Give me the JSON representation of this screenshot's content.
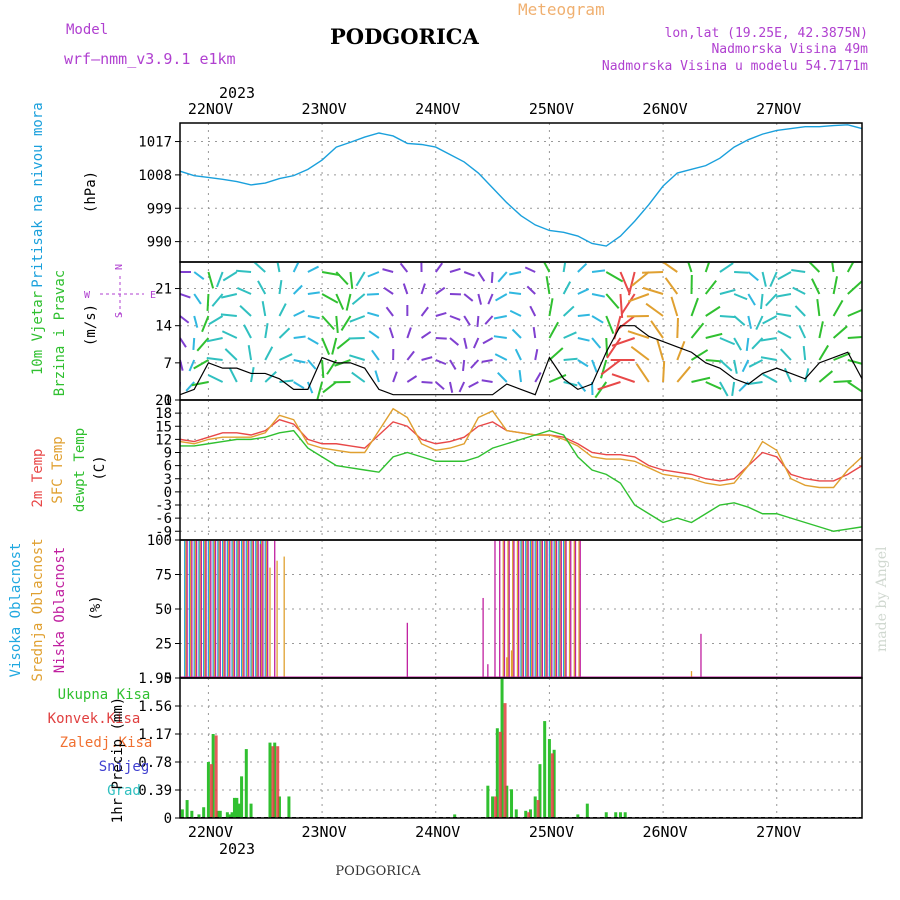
{
  "header": {
    "model_label": "Model",
    "model_name": "wrf—nmm_v3.9.1  e1km",
    "title": "PODGORICA",
    "product": "Meteogram",
    "coords": "lon,lat (19.25E, 42.3875N)",
    "elevation": "Nadmorska Visina 49m",
    "model_elevation": "Nadmorska Visina u modelu 54.7171m"
  },
  "footer": {
    "station": "PODGORICA",
    "credit": "made by Angel"
  },
  "time_axis": {
    "year_label": "2023",
    "days": [
      "22NOV",
      "23NOV",
      "24NOV",
      "25NOV",
      "26NOV",
      "27NOV"
    ],
    "range_hours": [
      -6,
      138
    ]
  },
  "colors": {
    "pressure": "#1aa0dc",
    "t2m": "#e84848",
    "sfc": "#e0a030",
    "dew": "#30c030",
    "high_cloud": "#20a8e0",
    "mid_cloud": "#e0a030",
    "low_cloud": "#c020a0",
    "total_precip": "#30c030",
    "conv_precip": "#e04040",
    "snow": "#4040d0",
    "grad": "#30c0c0",
    "label_purple": "#b040d0",
    "label_orange": "#f0b070"
  },
  "chart_data": [
    {
      "type": "line",
      "panel": "pressure",
      "ylabel": [
        "Pritisak na nivou mora",
        "(hPa)"
      ],
      "yticks": [
        990,
        999,
        1008,
        1017
      ],
      "ylim": [
        984.5,
        1022
      ],
      "grid": true,
      "series": [
        {
          "x": [
            -6,
            -3,
            0,
            3,
            6,
            9,
            12,
            15,
            18,
            21,
            24,
            27,
            30,
            33,
            36,
            39,
            42,
            45,
            48,
            51,
            54,
            57,
            60,
            63,
            66,
            69,
            72,
            75,
            78,
            81,
            84,
            87,
            90,
            93,
            96,
            99,
            102,
            105,
            108,
            111,
            114,
            117,
            120,
            123,
            126,
            129,
            132,
            135,
            138
          ],
          "y": [
            1009,
            1007.8,
            1007.3,
            1006.8,
            1006.2,
            1005.3,
            1005.8,
            1007,
            1007.8,
            1009.5,
            1012,
            1015.5,
            1016.8,
            1018.2,
            1019.3,
            1018.5,
            1016.5,
            1016.2,
            1015.5,
            1013.5,
            1011.5,
            1008.5,
            1004.5,
            1000.5,
            997,
            994.5,
            993,
            992.5,
            991.5,
            989.5,
            988.8,
            991.5,
            995.5,
            1000,
            1005,
            1008.5,
            1009.5,
            1010.5,
            1012.5,
            1015.5,
            1017.5,
            1019,
            1020,
            1020.5,
            1021,
            1021,
            1021.3,
            1021.5,
            1020.5
          ]
        }
      ]
    },
    {
      "type": "barbs",
      "panel": "wind",
      "ylabel": [
        "10m Vjetar",
        "Brzina i Pravac",
        "(m/s)"
      ],
      "compass": {
        "n": "N",
        "s": "S",
        "e": "E",
        "w": "W"
      },
      "yticks": [
        0,
        7,
        14,
        21
      ],
      "ylim": [
        0,
        26
      ],
      "grid": true,
      "series": [
        {
          "name": "speed",
          "x": [
            -6,
            -3,
            0,
            3,
            6,
            9,
            12,
            15,
            18,
            21,
            24,
            27,
            30,
            33,
            36,
            39,
            42,
            45,
            48,
            51,
            54,
            57,
            60,
            63,
            66,
            69,
            72,
            75,
            78,
            81,
            84,
            87,
            90,
            93,
            96,
            99,
            102,
            105,
            108,
            111,
            114,
            117,
            120,
            123,
            126,
            129,
            132,
            135,
            138
          ],
          "y": [
            1,
            2,
            7,
            6,
            6,
            5,
            5,
            4,
            2,
            2,
            8,
            7,
            7,
            6,
            2,
            1,
            1,
            1,
            1,
            1,
            1,
            1,
            1,
            3,
            2,
            1,
            8,
            4,
            2,
            3,
            9,
            14,
            14,
            12,
            11,
            10,
            9,
            7,
            6,
            4,
            3,
            5,
            6,
            5,
            4,
            7,
            8,
            9,
            4
          ]
        }
      ]
    },
    {
      "type": "line",
      "panel": "temperature",
      "ylabel": [
        "2m Temp",
        "SFC Temp",
        "dewpt Temp",
        "(C)"
      ],
      "yticks": [
        -9,
        -6,
        -3,
        0,
        3,
        6,
        9,
        12,
        15,
        18,
        21
      ],
      "ylim": [
        -11,
        21
      ],
      "grid": true,
      "x": [
        -6,
        -3,
        0,
        3,
        6,
        9,
        12,
        15,
        18,
        21,
        24,
        27,
        30,
        33,
        36,
        39,
        42,
        45,
        48,
        51,
        54,
        57,
        60,
        63,
        66,
        69,
        72,
        75,
        78,
        81,
        84,
        87,
        90,
        93,
        96,
        99,
        102,
        105,
        108,
        111,
        114,
        117,
        120,
        123,
        126,
        129,
        132,
        135,
        138
      ],
      "series": [
        {
          "name": "2m Temp",
          "y": [
            12,
            11.5,
            12.5,
            13.5,
            13.5,
            13,
            14,
            16.5,
            15.5,
            12,
            11,
            11,
            10.5,
            10,
            13,
            16,
            15,
            12,
            11,
            11.5,
            12.5,
            15,
            16,
            14,
            13.5,
            13,
            13,
            12.5,
            11,
            9,
            8.5,
            8.5,
            8,
            6,
            5,
            4.5,
            4,
            3,
            2.5,
            3,
            6,
            9,
            8,
            4,
            3,
            2.5,
            2.5,
            4,
            6
          ]
        },
        {
          "name": "SFC Temp",
          "y": [
            11.5,
            11,
            12,
            12.5,
            12.5,
            12.5,
            13.5,
            17.5,
            16.5,
            11,
            10,
            9.5,
            9,
            9,
            14,
            19,
            17,
            11,
            9.5,
            10,
            11,
            17,
            18.5,
            14,
            13.5,
            13,
            13,
            12,
            10.5,
            8,
            7.5,
            7.5,
            7,
            5.5,
            4,
            3.5,
            3,
            2,
            1.5,
            2,
            6,
            11.5,
            9.5,
            3,
            1.5,
            1,
            1,
            5,
            8
          ]
        },
        {
          "name": "dewpt Temp",
          "y": [
            10.5,
            10.5,
            11,
            11.5,
            12,
            12,
            12.5,
            13.5,
            14,
            10,
            8,
            6,
            5.5,
            5,
            4.5,
            8,
            9,
            8,
            7,
            7,
            7,
            8,
            10,
            11,
            12,
            13,
            14,
            13,
            8,
            5,
            4,
            2,
            -3,
            -5,
            -7,
            -6,
            -7,
            -5,
            -3,
            -2.5,
            -3.5,
            -5,
            -5,
            -6,
            -7,
            -8,
            -9,
            -8.5,
            -8
          ]
        }
      ]
    },
    {
      "type": "bar",
      "panel": "cloud",
      "ylabel": [
        "Visoka Oblacnost",
        "Srednja Oblacnost",
        "Niska Oblacnost",
        "(%)"
      ],
      "yticks": [
        0,
        25,
        50,
        75,
        100
      ],
      "ylim": [
        0,
        100
      ],
      "grid": true,
      "series": [
        {
          "name": "Visoka Oblacnost",
          "spans": [
            [
              -5,
              12.5,
              100
            ],
            [
              66,
              75,
              100
            ]
          ]
        },
        {
          "name": "Srednja Oblacnost",
          "spans": [
            [
              -5,
              12.5,
              100
            ],
            [
              62,
              78,
              100
            ]
          ]
        },
        {
          "name": "Niska Oblacnost",
          "spans": [
            [
              -5,
              12.5,
              100
            ],
            [
              60,
              78,
              100
            ]
          ]
        },
        {
          "name": "Srednja Oblacnost",
          "points": [
            [
              13,
              80
            ],
            [
              14.5,
              85
            ],
            [
              16,
              88
            ],
            [
              63,
              15
            ],
            [
              64,
              20
            ],
            [
              102,
              5
            ]
          ]
        },
        {
          "name": "Niska Oblacnost",
          "points": [
            [
              11,
              97
            ],
            [
              14,
              100
            ],
            [
              42,
              40
            ],
            [
              58,
              58
            ],
            [
              59,
              10
            ],
            [
              104,
              32
            ]
          ]
        }
      ]
    },
    {
      "type": "bar",
      "panel": "precip",
      "ylabel": [
        "1hr Precip (mm)"
      ],
      "legend": [
        "Ukupna Kisa",
        "Konvek.Kisa",
        "Zaledj.Kisa",
        "Snijeg",
        "Grad"
      ],
      "yticks": [
        0,
        0.39,
        0.78,
        1.17,
        1.56,
        1.95
      ],
      "ylim": [
        0,
        1.95
      ],
      "grid": true,
      "series": [
        {
          "name": "Ukupna Kisa",
          "x": [
            -5.5,
            -4.5,
            -3.5,
            -2,
            -1,
            0,
            1,
            2,
            2.5,
            4,
            4.5,
            5,
            5.5,
            6,
            6.5,
            7,
            8,
            9,
            13,
            14,
            15,
            17,
            52,
            59,
            60,
            61,
            62,
            63,
            64,
            65,
            67,
            68,
            69,
            70,
            71,
            72,
            73,
            78,
            80,
            84,
            86,
            87,
            88
          ],
          "y": [
            0.12,
            0.25,
            0.1,
            0.05,
            0.15,
            0.78,
            1.17,
            0.1,
            0.1,
            0.08,
            0.05,
            0.08,
            0.28,
            0.28,
            0.2,
            0.58,
            0.96,
            0.2,
            1.05,
            1.05,
            0.3,
            0.3,
            0.05,
            0.45,
            0.3,
            1.25,
            1.95,
            0.45,
            0.4,
            0.12,
            0.1,
            0.12,
            0.3,
            0.75,
            1.35,
            1.1,
            0.95,
            0.05,
            0.2,
            0.08,
            0.08,
            0.08,
            0.08
          ]
        },
        {
          "name": "Konvek.Kisa",
          "x": [
            0,
            1,
            13,
            14,
            60,
            61,
            62,
            67,
            69,
            72
          ],
          "y": [
            0.75,
            1.15,
            1.0,
            1.0,
            0.3,
            1.2,
            1.6,
            0.08,
            0.25,
            0.9
          ]
        }
      ]
    }
  ]
}
